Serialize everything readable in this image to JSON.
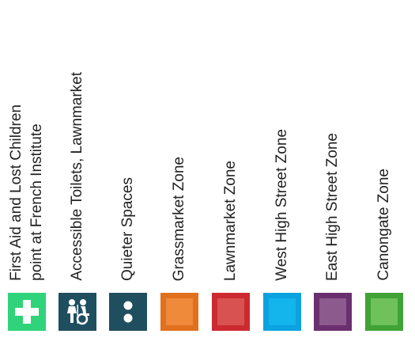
{
  "legend": [
    {
      "label_lines": [
        "First Aid and Lost Children",
        "point at French Institute"
      ],
      "icon": "first-aid-cross-icon",
      "color": "#2fd37a"
    },
    {
      "label_lines": [
        "Accessible Toilets, Lawnmarket"
      ],
      "icon": "accessible-toilet-icon",
      "color": "#1f4e5f"
    },
    {
      "label_lines": [
        "Quieter Spaces"
      ],
      "icon": "quieter-spaces-icon",
      "color": "#1f4e5f"
    },
    {
      "label_lines": [
        "Grassmarket Zone"
      ],
      "icon": "zone-swatch",
      "color": "#ee8a3a",
      "border": "#e1701e"
    },
    {
      "label_lines": [
        "Lawnmarket Zone"
      ],
      "icon": "zone-swatch",
      "color": "#d95252",
      "border": "#cc2a2f"
    },
    {
      "label_lines": [
        "West High Street Zone"
      ],
      "icon": "zone-swatch",
      "color": "#14b4ec",
      "border": "#0aa2e0"
    },
    {
      "label_lines": [
        "East High Street Zone"
      ],
      "icon": "zone-swatch",
      "color": "#8d5a8e",
      "border": "#6a2f6e"
    },
    {
      "label_lines": [
        "Canongate Zone"
      ],
      "icon": "zone-swatch",
      "color": "#6fc15a",
      "border": "#3fa336"
    }
  ]
}
